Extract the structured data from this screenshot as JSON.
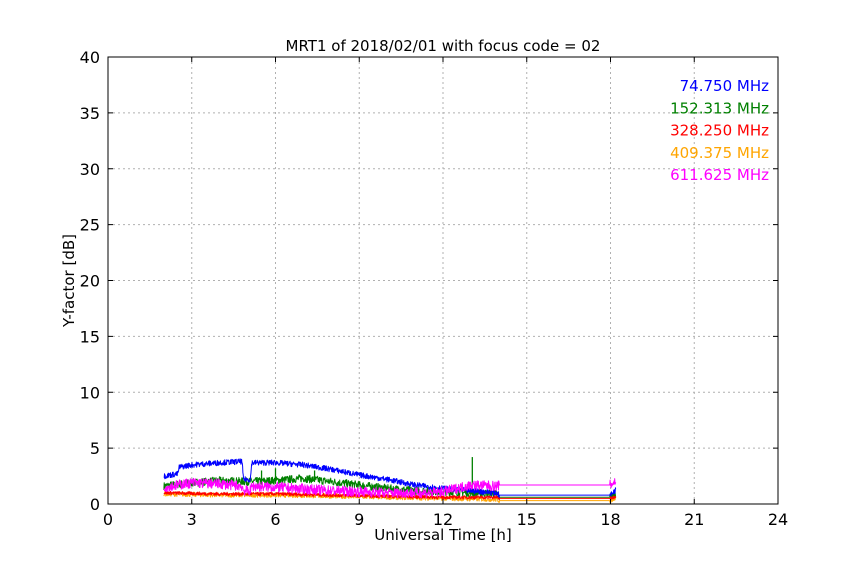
{
  "chart_data": {
    "type": "line",
    "title": "MRT1 of 2018/02/01 with focus code = 02",
    "xlabel": "Universal Time [h]",
    "ylabel": "Y-factor [dB]",
    "xlim": [
      0,
      24
    ],
    "ylim": [
      0,
      40
    ],
    "xticks": [
      0,
      3,
      6,
      9,
      12,
      15,
      18,
      21,
      24
    ],
    "yticks": [
      0,
      5,
      10,
      15,
      20,
      25,
      30,
      35,
      40
    ],
    "grid": true,
    "legend_position": "top-right",
    "series": [
      {
        "name": "74.750 MHz",
        "color": "#0000ff",
        "noise": 0.25,
        "points": [
          [
            2.0,
            2.5
          ],
          [
            2.5,
            2.7
          ],
          [
            2.55,
            3.3
          ],
          [
            3.0,
            3.5
          ],
          [
            4.0,
            3.7
          ],
          [
            4.8,
            3.8
          ],
          [
            4.85,
            2.2
          ],
          [
            5.1,
            2.2
          ],
          [
            5.15,
            3.7
          ],
          [
            6.0,
            3.7
          ],
          [
            7.0,
            3.5
          ],
          [
            8.0,
            3.1
          ],
          [
            9.0,
            2.6
          ],
          [
            10.0,
            2.2
          ],
          [
            11.0,
            1.7
          ],
          [
            12.0,
            1.4
          ],
          [
            12.9,
            1.2
          ],
          [
            13.95,
            1.0
          ],
          [
            14.0,
            0.8
          ],
          [
            18.0,
            0.8
          ],
          [
            18.2,
            1.3
          ]
        ]
      },
      {
        "name": "152.313 MHz",
        "color": "#008000",
        "noise": 0.35,
        "points": [
          [
            2.0,
            1.6
          ],
          [
            3.0,
            1.9
          ],
          [
            4.0,
            2.1
          ],
          [
            5.0,
            2.0
          ],
          [
            6.0,
            2.1
          ],
          [
            7.0,
            2.3
          ],
          [
            8.0,
            2.0
          ],
          [
            9.0,
            1.7
          ],
          [
            10.0,
            1.4
          ],
          [
            11.0,
            1.2
          ],
          [
            12.0,
            1.1
          ],
          [
            13.0,
            1.0
          ],
          [
            13.95,
            0.9
          ],
          [
            14.0,
            0.6
          ],
          [
            18.0,
            0.6
          ],
          [
            18.2,
            0.9
          ]
        ],
        "spikes": [
          [
            5.5,
            3.0
          ],
          [
            6.0,
            3.2
          ],
          [
            7.4,
            3.0
          ],
          [
            13.05,
            4.2
          ]
        ]
      },
      {
        "name": "328.250 MHz",
        "color": "#ff0000",
        "noise": 0.15,
        "points": [
          [
            2.0,
            1.0
          ],
          [
            4.0,
            0.9
          ],
          [
            6.0,
            0.9
          ],
          [
            8.0,
            0.8
          ],
          [
            10.0,
            0.7
          ],
          [
            12.0,
            0.6
          ],
          [
            13.95,
            0.6
          ],
          [
            14.0,
            0.5
          ],
          [
            18.0,
            0.5
          ],
          [
            18.2,
            0.7
          ]
        ]
      },
      {
        "name": "409.375 MHz",
        "color": "#ffa500",
        "noise": 0.2,
        "points": [
          [
            2.0,
            0.9
          ],
          [
            4.0,
            0.8
          ],
          [
            6.0,
            0.8
          ],
          [
            8.0,
            0.7
          ],
          [
            10.0,
            0.6
          ],
          [
            12.0,
            0.5
          ],
          [
            13.95,
            0.4
          ],
          [
            14.0,
            0.3
          ],
          [
            18.0,
            0.3
          ],
          [
            18.2,
            0.6
          ]
        ]
      },
      {
        "name": "611.625 MHz",
        "color": "#ff00ff",
        "noise": 0.45,
        "points": [
          [
            2.0,
            1.5
          ],
          [
            3.0,
            1.9
          ],
          [
            4.0,
            1.8
          ],
          [
            4.8,
            1.6
          ],
          [
            4.85,
            1.2
          ],
          [
            5.1,
            1.2
          ],
          [
            5.15,
            1.6
          ],
          [
            6.0,
            1.5
          ],
          [
            8.0,
            1.2
          ],
          [
            10.0,
            1.0
          ],
          [
            11.5,
            1.0
          ],
          [
            12.0,
            1.1
          ],
          [
            13.0,
            1.7
          ],
          [
            13.95,
            1.6
          ],
          [
            14.0,
            1.7
          ],
          [
            18.0,
            1.7
          ],
          [
            18.2,
            2.1
          ]
        ]
      }
    ]
  }
}
